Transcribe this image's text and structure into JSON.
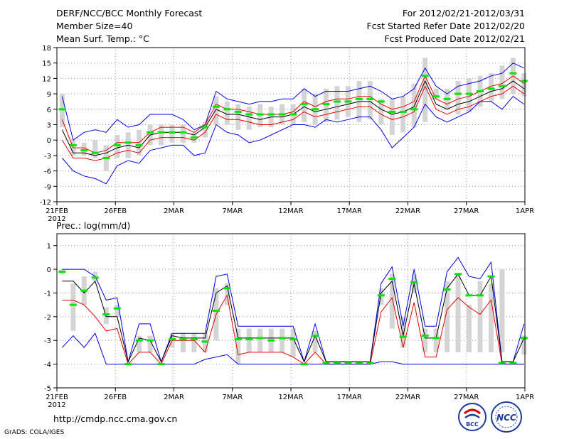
{
  "header": {
    "title": "DERF/NCC/BCC Monthly Forecast",
    "member": "Member Size=40",
    "variable": "Mean Surf. Temp.: °C",
    "period": "For 2012/02/21-2012/03/31",
    "started": "Fcst Started Refer Date 2012/02/20",
    "produced": "Fcst Produced Date 2012/02/21"
  },
  "footer": {
    "url": "http://cmdp.ncc.cma.gov.cn",
    "grads": "GrADS: COLA/IGES",
    "logo_bcc": "BCC",
    "logo_ncc": "NCC"
  },
  "colors": {
    "box": "#d4d4d4",
    "median": "#00e600",
    "mean": "#000000",
    "inner": "#e60000",
    "outer": "#0000e6",
    "grid": "#999999"
  },
  "chart_data": [
    {
      "type": "line",
      "title": "Mean Surf. Temp.: °C",
      "ylabel": "°C",
      "ylim": [
        -12,
        18
      ],
      "yticks": [
        "-12",
        "-9",
        "-6",
        "-3",
        "0",
        "3",
        "6",
        "9",
        "12",
        "15",
        "18"
      ],
      "xlim": [
        0,
        40
      ],
      "xticks": [
        {
          "x": 0,
          "label": "21FEB",
          "sub": "2012"
        },
        {
          "x": 5,
          "label": "26FEB"
        },
        {
          "x": 10,
          "label": "2MAR"
        },
        {
          "x": 15,
          "label": "7MAR"
        },
        {
          "x": 20,
          "label": "12MAR"
        },
        {
          "x": 25,
          "label": "17MAR"
        },
        {
          "x": 30,
          "label": "22MAR"
        },
        {
          "x": 35,
          "label": "27MAR"
        },
        {
          "x": 40,
          "label": "1APR"
        }
      ],
      "box_low": [
        2.5,
        -3,
        -3,
        -3.5,
        -6,
        -3.5,
        -3.5,
        -3,
        -1,
        -1,
        -0.5,
        -0.5,
        -0.5,
        0.5,
        3,
        3,
        2,
        2,
        2.5,
        2.5,
        3,
        3,
        3.5,
        3,
        3.5,
        4,
        4.5,
        3.5,
        4,
        3,
        1,
        1.5,
        2.5,
        3.5,
        8,
        6,
        5,
        5.5,
        6.5,
        7.5,
        8,
        9,
        8.5
      ],
      "box_high": [
        9,
        0,
        -0.5,
        0,
        -1,
        1,
        1.5,
        2,
        3,
        3,
        3,
        3,
        1.5,
        3.5,
        8.5,
        7.5,
        7,
        6.5,
        7,
        6.5,
        7,
        7,
        10,
        9,
        10,
        10.5,
        10.5,
        11.5,
        11.5,
        8,
        8,
        8.5,
        11,
        16,
        10,
        10,
        11.5,
        12,
        12.5,
        13,
        14.5,
        16,
        13
      ],
      "median": [
        6,
        -1,
        -2,
        -2.5,
        -3.5,
        -1,
        -0.5,
        -1,
        1.5,
        1.5,
        1.5,
        1.5,
        0.5,
        2.5,
        6.5,
        6,
        5.5,
        5,
        5,
        5,
        5,
        5,
        7,
        6,
        7,
        7.5,
        7.5,
        8,
        8,
        7.5,
        5.5,
        5.5,
        6,
        12.5,
        8.5,
        8,
        9,
        9,
        9.5,
        10,
        10.5,
        13,
        11.5
      ],
      "series": [
        {
          "name": "ensemble max",
          "color": "#0000e6",
          "values": [
            8.5,
            0,
            1.5,
            2,
            1.5,
            4,
            2.5,
            3,
            5,
            5,
            5,
            4,
            2,
            3,
            9.5,
            8,
            7.5,
            7,
            7.5,
            7.5,
            8,
            8,
            10,
            8.5,
            9.5,
            9.5,
            9.5,
            10,
            10.5,
            9.5,
            8,
            8.5,
            10,
            14,
            10.5,
            9,
            10.5,
            11,
            11.5,
            12.5,
            13,
            15,
            14
          ]
        },
        {
          "name": "upper quartile",
          "color": "#e60000",
          "values": [
            4,
            -1.5,
            -1.5,
            -2.5,
            -2,
            -0.5,
            -0.5,
            -0.5,
            1.5,
            2.5,
            2.5,
            2.5,
            1.5,
            3,
            7,
            6,
            6,
            5.5,
            5,
            5,
            5,
            5.5,
            7.5,
            6.5,
            7.5,
            8,
            8,
            8.5,
            8.5,
            7,
            6,
            6.5,
            7.5,
            12.5,
            8,
            7,
            8,
            8.5,
            9.5,
            10.5,
            11,
            12.5,
            11
          ]
        },
        {
          "name": "ensemble mean",
          "color": "#000000",
          "values": [
            2,
            -2.5,
            -2.5,
            -3,
            -2.5,
            -1.5,
            -1,
            -1.5,
            1,
            1.5,
            1.5,
            1.5,
            1,
            2.5,
            6,
            5,
            5,
            4.5,
            4,
            4.5,
            4.5,
            5,
            6.5,
            5.5,
            6,
            6.5,
            7,
            7.5,
            7.5,
            6,
            5,
            5.5,
            6.5,
            11.5,
            7,
            6,
            7,
            7.5,
            8.5,
            9.5,
            10,
            11.5,
            10
          ]
        },
        {
          "name": "lower quartile",
          "color": "#e60000",
          "values": [
            0,
            -3.5,
            -3.5,
            -4,
            -3.5,
            -2.5,
            -2,
            -2.5,
            0,
            0.5,
            0.5,
            0.5,
            0,
            1.5,
            5,
            4,
            4,
            3.5,
            3,
            3,
            3.5,
            4,
            5.5,
            4.5,
            5,
            5.5,
            6,
            6.5,
            6.5,
            5,
            4,
            4.5,
            5.5,
            10.5,
            6,
            5,
            6,
            6.5,
            7.5,
            8.5,
            9,
            10.5,
            9
          ]
        },
        {
          "name": "ensemble min",
          "color": "#0000e6",
          "values": [
            -3.5,
            -6,
            -7,
            -7.5,
            -8.5,
            -5,
            -4,
            -4.5,
            -2,
            -1.5,
            -1,
            -1,
            -3,
            -2.5,
            3,
            1.5,
            1,
            -0.5,
            0,
            1,
            2,
            3,
            3,
            2.5,
            4,
            3.5,
            4,
            4.5,
            4.5,
            2,
            -1.5,
            0.5,
            2.5,
            7,
            4.5,
            3.5,
            4.5,
            5.5,
            7.5,
            7.5,
            6,
            8.5,
            7
          ]
        }
      ]
    },
    {
      "type": "line",
      "title": "Prec.: log(mm/d)",
      "ylabel": "log(mm/d)",
      "ylim": [
        -5,
        1.5
      ],
      "yticks": [
        "-5",
        "-4",
        "-3",
        "-2",
        "-1",
        "0",
        "1"
      ],
      "xlim": [
        0,
        40
      ],
      "xticks": [
        {
          "x": 0,
          "label": "21FEB",
          "sub": "2012"
        },
        {
          "x": 5,
          "label": "26FEB"
        },
        {
          "x": 10,
          "label": "2MAR"
        },
        {
          "x": 15,
          "label": "7MAR"
        },
        {
          "x": 20,
          "label": "12MAR"
        },
        {
          "x": 25,
          "label": "17MAR"
        },
        {
          "x": 30,
          "label": "22MAR"
        },
        {
          "x": 35,
          "label": "27MAR"
        },
        {
          "x": 40,
          "label": "1APR"
        }
      ],
      "box_low": [
        -0.2,
        -2.6,
        -1.5,
        -0.5,
        -2.3,
        -2,
        -4,
        -3.5,
        -3.5,
        -4,
        -3.3,
        -3.5,
        -3.5,
        -3.5,
        -3,
        -1.5,
        -4,
        -3.5,
        -3.5,
        -3.5,
        -3.5,
        -3.7,
        -4,
        -3.5,
        -4,
        -4,
        -4,
        -4,
        -4,
        -1.5,
        -2.5,
        -3.3,
        -1,
        -3.5,
        -3.5,
        -3.5,
        -3.5,
        -3.5,
        -3.5,
        -3.5,
        -3.5,
        -4,
        -3.6
      ],
      "box_high": [
        0,
        -0.6,
        -0.3,
        -0.1,
        -1.6,
        -1.5,
        -4,
        -2.8,
        -2.8,
        -4,
        -2.7,
        -2.7,
        -2.7,
        -2.7,
        -0.8,
        -0.6,
        -2.5,
        -2.5,
        -2.5,
        -2.5,
        -2.5,
        -2.5,
        -4,
        -2.6,
        -4,
        -4,
        -4,
        -4,
        -4,
        -0.8,
        -0.2,
        -2,
        -0.2,
        -2.5,
        -2.5,
        -0.5,
        -0.2,
        -1.5,
        -0.5,
        -0.6,
        0,
        -4,
        -2.8
      ],
      "median": [
        -0.1,
        -1.5,
        -0.9,
        -0.35,
        -1.9,
        -1.65,
        -4,
        -3,
        -3,
        -4,
        -2.95,
        -2.95,
        -2.95,
        -3.05,
        -1.75,
        -0.8,
        -2.95,
        -2.95,
        -2.9,
        -3,
        -2.9,
        -2.95,
        -4,
        -2.8,
        -3.95,
        -3.95,
        -3.95,
        -3.95,
        -3.95,
        -1.1,
        -0.4,
        -2.85,
        -0.55,
        -2.8,
        -2.9,
        -0.85,
        -0.2,
        -1.1,
        -1.1,
        -0.3,
        -3.95,
        -3.95,
        -2.9
      ],
      "series": [
        {
          "name": "ensemble max",
          "color": "#0000e6",
          "values": [
            0,
            0,
            0,
            -0.3,
            -1.3,
            -1.2,
            -3.9,
            -2.3,
            -2.3,
            -3.9,
            -2.7,
            -2.7,
            -2.7,
            -2.7,
            -0.3,
            -0.2,
            -2.4,
            -2.4,
            -2.4,
            -2.4,
            -2.4,
            -2.4,
            -3.9,
            -2.3,
            -3.9,
            -3.9,
            -3.9,
            -3.9,
            -3.9,
            -0.6,
            0.1,
            -2.4,
            0,
            -2.4,
            -2.4,
            -0.1,
            0.5,
            -0.3,
            -0.4,
            0.3,
            -3.9,
            -3.9,
            -2.3
          ]
        },
        {
          "name": "ensemble mean",
          "color": "#000000",
          "values": [
            -0.5,
            -0.5,
            -1,
            -0.5,
            -2,
            -2,
            -3.9,
            -2.9,
            -3,
            -3.9,
            -2.8,
            -2.9,
            -2.9,
            -2.9,
            -1,
            -0.7,
            -2.9,
            -2.9,
            -2.9,
            -2.9,
            -2.9,
            -2.9,
            -3.9,
            -2.8,
            -3.9,
            -3.9,
            -3.9,
            -3.9,
            -3.9,
            -1,
            -0.5,
            -2.8,
            -0.6,
            -2.9,
            -2.9,
            -0.8,
            -0.2,
            -1.1,
            -1.1,
            -0.3,
            -3.9,
            -3.9,
            -2.9
          ]
        },
        {
          "name": "inner band",
          "color": "#e60000",
          "values": [
            -1.3,
            -1.3,
            -1.5,
            -2,
            -2.6,
            -2.5,
            -4,
            -3.5,
            -3.5,
            -4,
            -3,
            -3,
            -3,
            -3.5,
            -1.9,
            -1.1,
            -3.6,
            -3.5,
            -3.5,
            -3.5,
            -3.5,
            -3.7,
            -4,
            -3.5,
            -4,
            -4,
            -4,
            -4,
            -4,
            -1.8,
            -1.2,
            -3.3,
            -1.4,
            -3.7,
            -3.7,
            -1.7,
            -1.2,
            -1.6,
            -1.9,
            -1.3,
            -4,
            -4,
            -4
          ]
        },
        {
          "name": "ensemble min",
          "color": "#0000e6",
          "values": [
            -3.3,
            -2.8,
            -3.3,
            -2.7,
            -4,
            -4,
            -4,
            -4,
            -4,
            -4,
            -4,
            -4,
            -4,
            -3.8,
            -3.7,
            -3.6,
            -4,
            -4,
            -4,
            -4,
            -4,
            -4,
            -4,
            -4,
            -4,
            -4,
            -4,
            -4,
            -4,
            -3.9,
            -3.9,
            -4,
            -4,
            -4,
            -4,
            -4,
            -4,
            -4,
            -4,
            -4,
            -4,
            -4,
            -4
          ]
        }
      ]
    }
  ]
}
